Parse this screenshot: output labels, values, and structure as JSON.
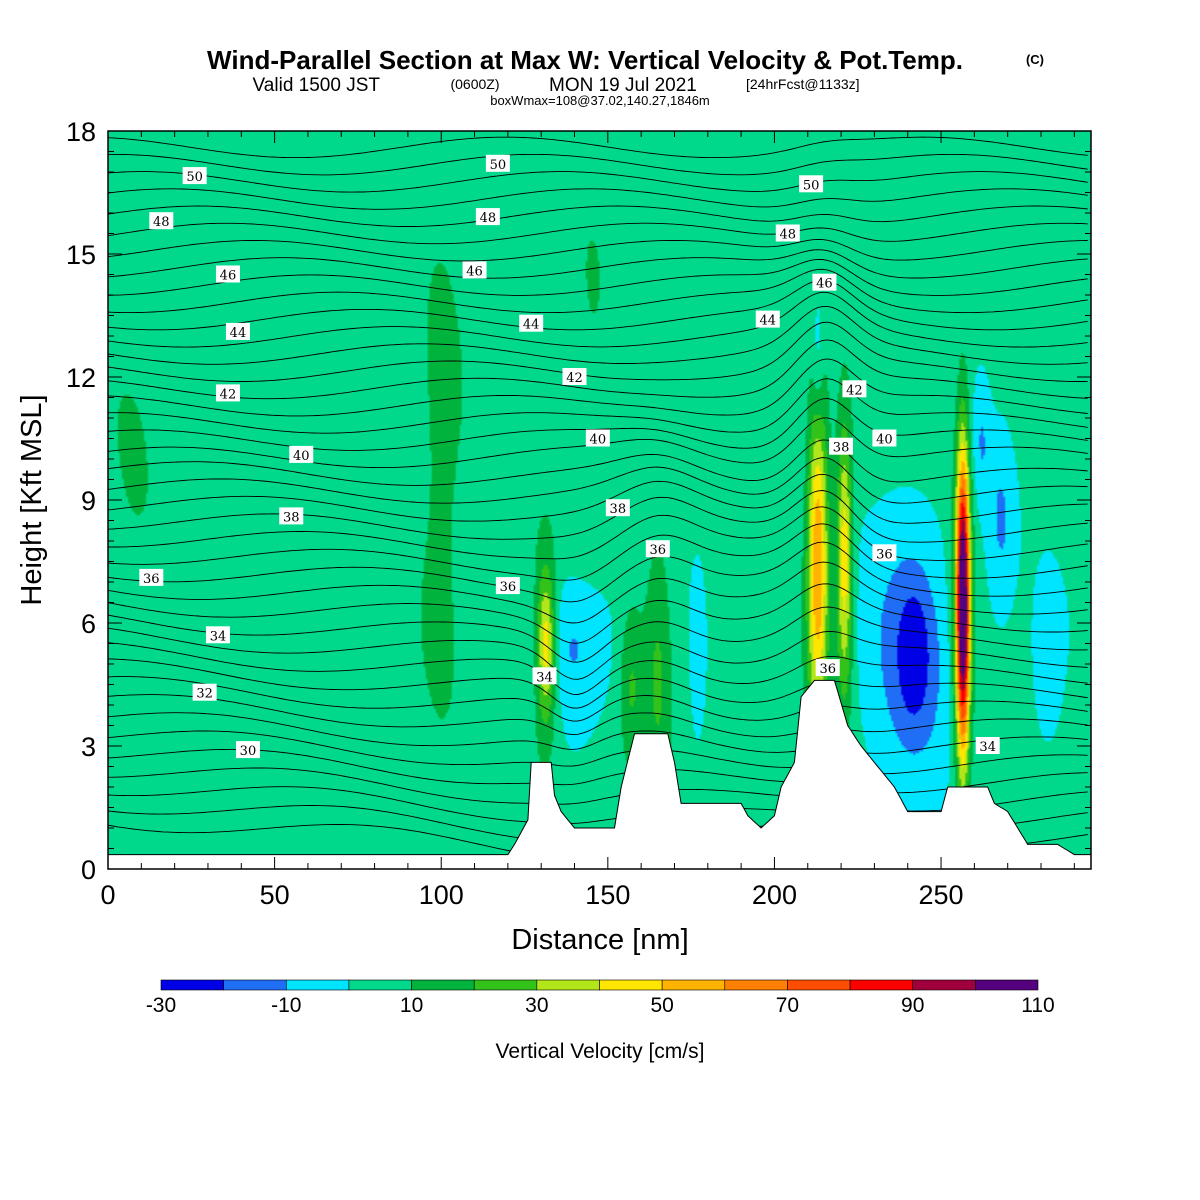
{
  "header": {
    "title_main": "Wind-Parallel Section at Max W: Vertical Velocity & Pot.Temp.",
    "title_mark": "(C)",
    "valid_a": "Valid 1500 JST",
    "valid_z": "(0600Z)",
    "valid_b": "MON 19 Jul 2021",
    "valid_c": "[24hrFcst@1133z]",
    "box_info": "boxWmax=108@37.02,140.27,1846m"
  },
  "colors": {
    "fill": [
      "#0000e6",
      "#1f6ef5",
      "#00e5ff",
      "#00d98c",
      "#00b33c",
      "#33c21a",
      "#b3e61a",
      "#ffe600",
      "#ffb300",
      "#ff8000",
      "#ff4d00",
      "#ff0000",
      "#a0003c",
      "#55007f"
    ],
    "contour": "#000000",
    "terrain": "#ffffff"
  },
  "chart_data": {
    "type": "contour-cross-section",
    "xlabel": "Distance [nm]",
    "ylabel": "Height [Kft MSL]",
    "xlim": [
      0,
      295
    ],
    "ylim": [
      0,
      18
    ],
    "xticks": [
      "0",
      "50",
      "100",
      "150",
      "200",
      "250"
    ],
    "xtick_values": [
      0,
      50,
      100,
      150,
      200,
      250
    ],
    "yticks": [
      "0",
      "3",
      "6",
      "9",
      "12",
      "15",
      "18"
    ],
    "ytick_values": [
      0,
      3,
      6,
      9,
      12,
      15,
      18
    ],
    "colorbar": {
      "label": "Vertical Velocity [cm/s]",
      "bounds": [
        -30,
        -20,
        -10,
        0,
        10,
        20,
        30,
        40,
        50,
        60,
        70,
        80,
        90,
        100,
        110
      ],
      "tick_labels": [
        "-30",
        "-10",
        "10",
        "30",
        "50",
        "70",
        "90",
        "110"
      ]
    },
    "terrain_kft": [
      [
        0,
        0.35
      ],
      [
        80,
        0.35
      ],
      [
        120,
        0.35
      ],
      [
        122,
        0.6
      ],
      [
        126,
        1.2
      ],
      [
        127,
        2.6
      ],
      [
        133,
        2.6
      ],
      [
        134,
        1.8
      ],
      [
        136,
        1.4
      ],
      [
        140,
        1.0
      ],
      [
        152,
        1.0
      ],
      [
        154,
        2.0
      ],
      [
        158,
        3.3
      ],
      [
        168,
        3.3
      ],
      [
        170,
        2.6
      ],
      [
        172,
        1.6
      ],
      [
        190,
        1.6
      ],
      [
        192,
        1.3
      ],
      [
        196,
        1.0
      ],
      [
        200,
        1.3
      ],
      [
        202,
        2.0
      ],
      [
        206,
        2.6
      ],
      [
        208,
        4.2
      ],
      [
        212,
        4.6
      ],
      [
        218,
        4.6
      ],
      [
        222,
        3.5
      ],
      [
        226,
        3.0
      ],
      [
        230,
        2.6
      ],
      [
        236,
        2.0
      ],
      [
        240,
        1.4
      ],
      [
        250,
        1.4
      ],
      [
        252,
        2.0
      ],
      [
        264,
        2.0
      ],
      [
        266,
        1.6
      ],
      [
        270,
        1.4
      ],
      [
        276,
        0.6
      ],
      [
        278,
        0.6
      ],
      [
        285,
        0.6
      ],
      [
        290,
        0.35
      ],
      [
        295,
        0.35
      ]
    ],
    "vertical_velocity_cores": [
      {
        "x": 8,
        "z": 8.5,
        "sx": 8,
        "sz": 5.0,
        "w": 6
      },
      {
        "x": 45,
        "z": 7,
        "sx": 14,
        "sz": 3.5,
        "w": 4
      },
      {
        "x": 100,
        "z": 10,
        "sx": 6,
        "sz": 7.0,
        "w": 8
      },
      {
        "x": 145,
        "z": 12.5,
        "sx": 5,
        "sz": 4.0,
        "w": 5
      },
      {
        "x": 131.5,
        "z": 5.5,
        "sx": 1.8,
        "sz": 1.2,
        "w": 35
      },
      {
        "x": 131,
        "z": 5.0,
        "sx": 3,
        "sz": 2.2,
        "w": 15
      },
      {
        "x": 140,
        "z": 5.5,
        "sx": 8,
        "sz": 1.2,
        "w": -14
      },
      {
        "x": 157,
        "z": 4.5,
        "sx": 2.5,
        "sz": 1.5,
        "w": 17
      },
      {
        "x": 165,
        "z": 5.0,
        "sx": 3,
        "sz": 2.5,
        "w": 18
      },
      {
        "x": 177,
        "z": 5.0,
        "sx": 1.5,
        "sz": 1.5,
        "w": -10
      },
      {
        "x": 213,
        "z": 7.5,
        "sx": 2.2,
        "sz": 2.8,
        "w": 56
      },
      {
        "x": 221,
        "z": 7.5,
        "sx": 1.7,
        "sz": 2.4,
        "w": 44
      },
      {
        "x": 213,
        "z": 12.5,
        "sx": 1.2,
        "sz": 1.2,
        "w": -14
      },
      {
        "x": 240,
        "z": 5.5,
        "sx": 10,
        "sz": 2.6,
        "w": -18
      },
      {
        "x": 242,
        "z": 5.2,
        "sx": 3.5,
        "sz": 1.2,
        "w": -16
      },
      {
        "x": 256.5,
        "z": 6.5,
        "sx": 1.4,
        "sz": 2.5,
        "w": 108
      },
      {
        "x": 256.5,
        "z": 5.5,
        "sx": 2.5,
        "sz": 3.0,
        "w": 20
      },
      {
        "x": 268,
        "z": 8.5,
        "sx": 3.0,
        "sz": 1.6,
        "w": -14
      },
      {
        "x": 262,
        "z": 10.5,
        "sx": 2.0,
        "sz": 1.2,
        "w": -13
      },
      {
        "x": 282,
        "z": 5.0,
        "sx": 3,
        "sz": 1.4,
        "w": -10
      }
    ],
    "pot_temp_contour_labels": [
      {
        "text": "50",
        "x": 26,
        "z": 16.9
      },
      {
        "text": "48",
        "x": 16,
        "z": 15.8
      },
      {
        "text": "46",
        "x": 36,
        "z": 14.5
      },
      {
        "text": "44",
        "x": 39,
        "z": 13.1
      },
      {
        "text": "42",
        "x": 36,
        "z": 11.6
      },
      {
        "text": "40",
        "x": 58,
        "z": 10.1
      },
      {
        "text": "38",
        "x": 55,
        "z": 8.6
      },
      {
        "text": "36",
        "x": 13,
        "z": 7.1
      },
      {
        "text": "34",
        "x": 33,
        "z": 5.7
      },
      {
        "text": "32",
        "x": 29,
        "z": 4.3
      },
      {
        "text": "30",
        "x": 42,
        "z": 2.9
      },
      {
        "text": "50",
        "x": 117,
        "z": 17.2
      },
      {
        "text": "48",
        "x": 114,
        "z": 15.9
      },
      {
        "text": "46",
        "x": 110,
        "z": 14.6
      },
      {
        "text": "44",
        "x": 127,
        "z": 13.3
      },
      {
        "text": "42",
        "x": 140,
        "z": 12.0
      },
      {
        "text": "40",
        "x": 147,
        "z": 10.5
      },
      {
        "text": "38",
        "x": 153,
        "z": 8.8
      },
      {
        "text": "36",
        "x": 120,
        "z": 6.9
      },
      {
        "text": "36",
        "x": 165,
        "z": 7.8
      },
      {
        "text": "34",
        "x": 131,
        "z": 4.7
      },
      {
        "text": "50",
        "x": 211,
        "z": 16.7
      },
      {
        "text": "48",
        "x": 204,
        "z": 15.5
      },
      {
        "text": "46",
        "x": 215,
        "z": 14.3
      },
      {
        "text": "44",
        "x": 198,
        "z": 13.4
      },
      {
        "text": "42",
        "x": 224,
        "z": 11.7
      },
      {
        "text": "40",
        "x": 233,
        "z": 10.5
      },
      {
        "text": "38",
        "x": 220,
        "z": 10.3
      },
      {
        "text": "36",
        "x": 233,
        "z": 7.7
      },
      {
        "text": "36",
        "x": 216,
        "z": 4.9
      },
      {
        "text": "34",
        "x": 264,
        "z": 3.0
      }
    ]
  }
}
